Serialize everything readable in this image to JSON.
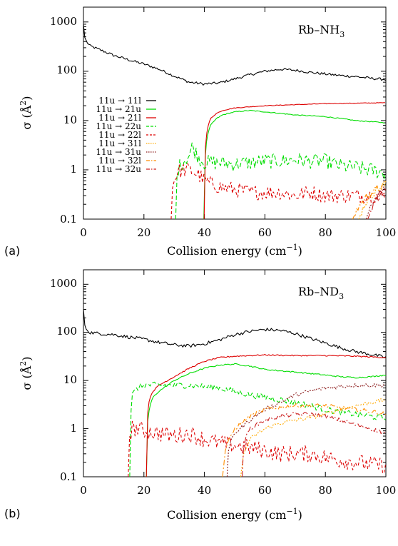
{
  "chart_data": [
    {
      "type": "line",
      "panel_label": "(a)",
      "annotation": "Rb–NH",
      "annotation_sub": "3",
      "xlabel": "Collision energy (cm",
      "xlabel_sup": "−1",
      "xlabel_close": ")",
      "ylabel": "σ (Å",
      "ylabel_sup": "2",
      "ylabel_close": ")",
      "xlim": [
        0,
        100
      ],
      "ylim": [
        0.1,
        2000
      ],
      "yscale": "log",
      "grid": false,
      "legend_placement": "left",
      "x_ticks": [
        "0",
        "20",
        "40",
        "60",
        "80",
        "100"
      ],
      "y_ticks": [
        "0.1",
        "1",
        "10",
        "100",
        "1000"
      ],
      "series": [
        {
          "name": "11u → 11l",
          "color": "#000000",
          "dash": "solid",
          "noise": 0.06,
          "x": [
            0,
            0.5,
            2,
            5,
            10,
            15,
            20,
            25,
            30,
            35,
            40,
            45,
            50,
            55,
            60,
            65,
            70,
            75,
            80,
            85,
            90,
            95,
            100
          ],
          "y": [
            900,
            450,
            330,
            280,
            210,
            170,
            140,
            110,
            80,
            60,
            55,
            58,
            70,
            85,
            100,
            110,
            105,
            95,
            88,
            82,
            78,
            72,
            68
          ]
        },
        {
          "name": "11u → 21u",
          "color": "#00dd00",
          "dash": "solid",
          "noise": 0.02,
          "x": [
            39.8,
            40,
            40.5,
            41,
            42,
            44,
            46,
            50,
            55,
            60,
            65,
            70,
            75,
            80,
            85,
            90,
            95,
            100
          ],
          "y": [
            0.1,
            1.0,
            3.0,
            5.0,
            8.0,
            11,
            13,
            15,
            16,
            15,
            14,
            13,
            12.5,
            12,
            11,
            10,
            9.5,
            9
          ]
        },
        {
          "name": "11u → 21l",
          "color": "#dd0000",
          "dash": "solid",
          "noise": 0.015,
          "x": [
            39.9,
            40,
            40.5,
            41,
            42,
            44,
            46,
            50,
            55,
            60,
            70,
            80,
            90,
            100
          ],
          "y": [
            0.1,
            1.5,
            4.0,
            7.0,
            11,
            14,
            16,
            18,
            19,
            20,
            21,
            22,
            22.5,
            23
          ]
        },
        {
          "name": "11u → 22u",
          "color": "#00dd00",
          "dash": "6,3",
          "noise": 0.35,
          "x": [
            30.5,
            31,
            33,
            35,
            36,
            38,
            40,
            45,
            50,
            55,
            60,
            65,
            70,
            75,
            80,
            85,
            90,
            95,
            100
          ],
          "y": [
            0.1,
            1.0,
            1.5,
            2.0,
            3.0,
            1.8,
            1.4,
            1.4,
            1.3,
            1.4,
            1.5,
            1.5,
            1.6,
            1.5,
            1.5,
            1.2,
            1.1,
            1.0,
            0.85
          ]
        },
        {
          "name": "11u → 22l",
          "color": "#dd0000",
          "dash": "4,3",
          "noise": 0.35,
          "x": [
            29,
            29.5,
            31,
            33,
            35,
            38,
            40,
            45,
            50,
            55,
            60,
            65,
            70,
            75,
            80,
            85,
            90,
            95,
            100
          ],
          "y": [
            0.1,
            0.5,
            0.9,
            1.0,
            1.0,
            0.8,
            0.6,
            0.45,
            0.4,
            0.35,
            0.35,
            0.35,
            0.3,
            0.35,
            0.3,
            0.3,
            0.3,
            0.3,
            0.3
          ]
        },
        {
          "name": "11u → 31l",
          "color": "#ffaa00",
          "dash": "2,2",
          "noise": 0.2,
          "x": [
            91,
            93,
            95,
            97,
            100
          ],
          "y": [
            0.1,
            0.2,
            0.3,
            0.4,
            0.5
          ]
        },
        {
          "name": "11u → 31u",
          "color": "#8b1a1a",
          "dash": "2,2",
          "noise": 0.2,
          "x": [
            93.5,
            95,
            97,
            100
          ],
          "y": [
            0.1,
            0.2,
            0.3,
            0.4
          ]
        },
        {
          "name": "11u → 32l",
          "color": "#ff8c00",
          "dash": "8,3,2,3",
          "noise": 0.2,
          "x": [
            89,
            91,
            94,
            97,
            100
          ],
          "y": [
            0.1,
            0.18,
            0.3,
            0.4,
            0.5
          ]
        },
        {
          "name": "11u → 32u",
          "color": "#cc2222",
          "dash": "8,3,2,3",
          "noise": 0.2,
          "x": [
            94,
            96,
            98,
            100
          ],
          "y": [
            0.1,
            0.2,
            0.3,
            0.35
          ]
        }
      ]
    },
    {
      "type": "line",
      "panel_label": "(b)",
      "annotation": "Rb–ND",
      "annotation_sub": "3",
      "xlabel": "Collision energy (cm",
      "xlabel_sup": "−1",
      "xlabel_close": ")",
      "ylabel": "σ (Å",
      "ylabel_sup": "2",
      "ylabel_close": ")",
      "xlim": [
        0,
        100
      ],
      "ylim": [
        0.1,
        2000
      ],
      "yscale": "log",
      "grid": false,
      "x_ticks": [
        "0",
        "20",
        "40",
        "60",
        "80",
        "100"
      ],
      "y_ticks": [
        "0.1",
        "1",
        "10",
        "100",
        "1000"
      ],
      "series": [
        {
          "name": "11u → 11l",
          "color": "#000000",
          "dash": "solid",
          "noise": 0.08,
          "x": [
            0,
            0.5,
            2,
            5,
            10,
            15,
            20,
            25,
            30,
            35,
            40,
            45,
            50,
            55,
            60,
            65,
            70,
            75,
            80,
            85,
            90,
            95,
            100
          ],
          "y": [
            300,
            130,
            100,
            95,
            90,
            80,
            72,
            62,
            55,
            52,
            58,
            70,
            90,
            105,
            115,
            110,
            95,
            75,
            60,
            48,
            40,
            35,
            30
          ]
        },
        {
          "name": "11u → 21u",
          "color": "#00dd00",
          "dash": "solid",
          "noise": 0.03,
          "x": [
            20.8,
            21,
            21.5,
            22,
            23,
            25,
            30,
            35,
            40,
            45,
            50,
            55,
            60,
            70,
            80,
            85,
            90,
            95,
            100
          ],
          "y": [
            0.1,
            1.0,
            2.0,
            3.0,
            4.5,
            6.0,
            10,
            14,
            18,
            21,
            22,
            20,
            17,
            15,
            13,
            12,
            11.5,
            12,
            13
          ]
        },
        {
          "name": "11u → 21l",
          "color": "#dd0000",
          "dash": "solid",
          "noise": 0.03,
          "x": [
            20.8,
            21,
            21.5,
            22,
            23,
            25,
            30,
            35,
            40,
            45,
            50,
            55,
            60,
            70,
            80,
            90,
            95,
            100
          ],
          "y": [
            0.1,
            1.5,
            3.0,
            4.5,
            6.0,
            8.0,
            12,
            18,
            25,
            30,
            32,
            33,
            34,
            33,
            33,
            32,
            31,
            30
          ]
        },
        {
          "name": "11u → 22u",
          "color": "#00dd00",
          "dash": "6,3",
          "noise": 0.15,
          "x": [
            15.3,
            15.6,
            16,
            18,
            20,
            25,
            30,
            35,
            40,
            45,
            50,
            55,
            60,
            65,
            70,
            75,
            80,
            85,
            90,
            95,
            100
          ],
          "y": [
            0.1,
            1.5,
            5.0,
            7.0,
            8.0,
            8.0,
            8.0,
            8.0,
            7.5,
            7.0,
            6.0,
            5.0,
            4.5,
            4.0,
            3.5,
            3.0,
            2.5,
            2.2,
            2.0,
            1.8,
            1.6
          ]
        },
        {
          "name": "11u → 22l",
          "color": "#dd0000",
          "dash": "4,3",
          "noise": 0.4,
          "x": [
            14.8,
            15,
            16,
            18,
            20,
            25,
            30,
            35,
            40,
            45,
            50,
            55,
            60,
            65,
            70,
            75,
            80,
            85,
            90,
            95,
            100
          ],
          "y": [
            0.1,
            0.6,
            1.0,
            1.0,
            0.9,
            0.8,
            0.7,
            0.8,
            0.6,
            0.5,
            0.45,
            0.4,
            0.35,
            0.3,
            0.3,
            0.3,
            0.25,
            0.22,
            0.2,
            0.18,
            0.17
          ]
        },
        {
          "name": "11u → 31l",
          "color": "#ffaa00",
          "dash": "2,2",
          "noise": 0.1,
          "x": [
            52,
            53,
            55,
            60,
            65,
            70,
            75,
            80,
            85,
            90,
            95,
            100
          ],
          "y": [
            0.1,
            0.3,
            0.6,
            1.0,
            1.3,
            1.5,
            1.7,
            2.0,
            2.5,
            3.0,
            3.5,
            4.0
          ]
        },
        {
          "name": "11u → 31u",
          "color": "#8b1a1a",
          "dash": "2,2",
          "noise": 0.1,
          "x": [
            47.5,
            48,
            50,
            55,
            60,
            65,
            70,
            75,
            80,
            85,
            90,
            95,
            100
          ],
          "y": [
            0.1,
            0.4,
            0.8,
            1.5,
            2.5,
            3.5,
            5.0,
            6.0,
            7.0,
            7.5,
            8.0,
            8.0,
            8.0
          ]
        },
        {
          "name": "11u → 32l",
          "color": "#ff8c00",
          "dash": "8,3,2,3",
          "noise": 0.1,
          "x": [
            46,
            47,
            50,
            55,
            60,
            65,
            70,
            75,
            80,
            85,
            90,
            95,
            100
          ],
          "y": [
            0.1,
            0.4,
            1.0,
            1.8,
            2.5,
            2.8,
            3.0,
            3.0,
            3.0,
            2.7,
            2.5,
            2.3,
            2.0
          ]
        },
        {
          "name": "11u → 32u",
          "color": "#cc2222",
          "dash": "8,3,2,3",
          "noise": 0.1,
          "x": [
            52.5,
            53,
            55,
            60,
            65,
            70,
            75,
            80,
            85,
            90,
            95,
            100
          ],
          "y": [
            0.1,
            0.5,
            1.0,
            1.5,
            1.8,
            2.0,
            2.0,
            1.8,
            1.5,
            1.2,
            1.0,
            0.8
          ]
        }
      ]
    }
  ]
}
